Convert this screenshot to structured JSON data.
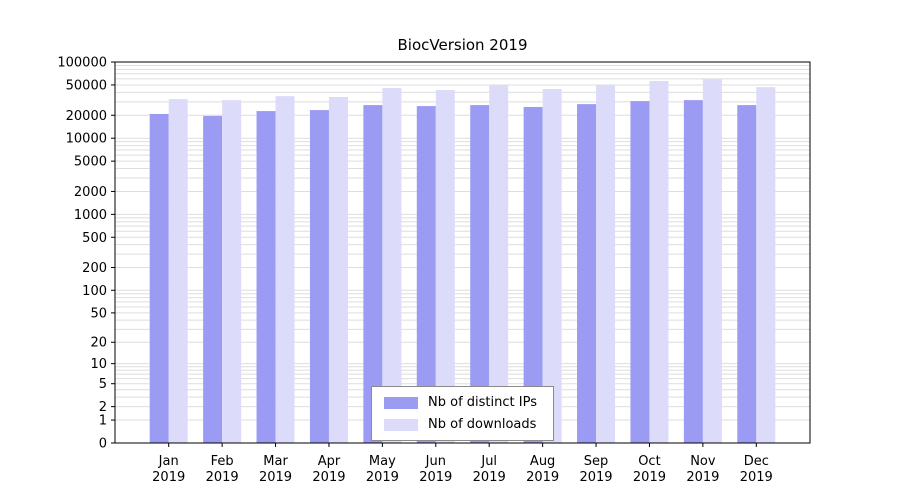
{
  "chart_data": {
    "type": "bar",
    "title": "BiocVersion 2019",
    "year": "2019",
    "categories": [
      "Jan",
      "Feb",
      "Mar",
      "Apr",
      "May",
      "Jun",
      "Jul",
      "Aug",
      "Sep",
      "Oct",
      "Nov",
      "Dec"
    ],
    "series": [
      {
        "name": "Nb of distinct IPs",
        "color": "#9b9bf3",
        "values": [
          20800,
          19600,
          22700,
          23400,
          27200,
          26400,
          27200,
          25700,
          28000,
          30700,
          31600,
          27200
        ]
      },
      {
        "name": "Nb of downloads",
        "color": "#dcdcfa",
        "values": [
          32600,
          31600,
          35700,
          34700,
          45600,
          42900,
          49900,
          44200,
          49900,
          56400,
          59900,
          46800
        ]
      }
    ],
    "yscale": "log1p",
    "ylim": [
      0,
      100000
    ],
    "yticks": [
      0,
      1,
      2,
      5,
      10,
      20,
      50,
      100,
      200,
      500,
      1000,
      2000,
      5000,
      10000,
      20000,
      50000,
      100000
    ],
    "grid": true,
    "legend_position": "bottom-center",
    "axis_color": "#000000",
    "grid_color": "#dedede"
  }
}
